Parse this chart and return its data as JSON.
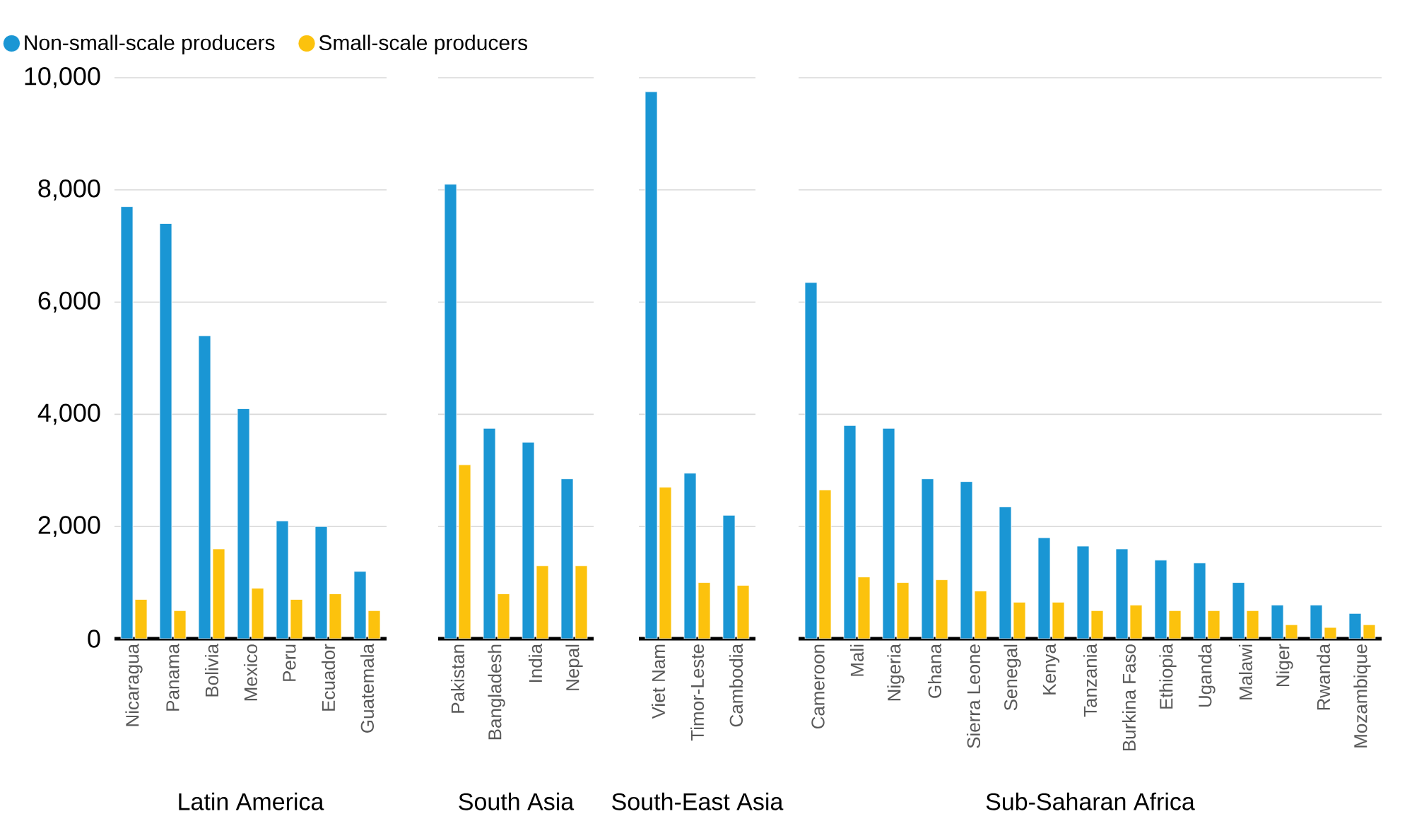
{
  "chart_data": [
    {
      "type": "bar",
      "xlabel": "Latin America",
      "categories": [
        "Nicaragua",
        "Panama",
        "Bolivia",
        "Mexico",
        "Peru",
        "Ecuador",
        "Guatemala"
      ],
      "series": [
        {
          "name": "Non-small-scale producers",
          "color": "#1a96d4",
          "values": [
            7700,
            7400,
            5400,
            4100,
            2100,
            2000,
            1200
          ]
        },
        {
          "name": "Small-scale producers",
          "color": "#fcc20d",
          "values": [
            700,
            500,
            1600,
            900,
            700,
            800,
            500
          ]
        }
      ],
      "ylim": [
        0,
        10000
      ],
      "yticks": [
        0,
        {
          "value": 2000,
          "label": "2,000"
        },
        {
          "value": 4000,
          "label": "4,000"
        },
        {
          "value": 6000,
          "label": "6,000"
        },
        {
          "value": 8000,
          "label": "8,000"
        },
        {
          "value": 10000,
          "label": "10,000"
        }
      ],
      "grid": "y",
      "legend": "top"
    },
    {
      "type": "bar",
      "xlabel": "South Asia",
      "categories": [
        "Pakistan",
        "Bangladesh",
        "India",
        "Nepal"
      ],
      "series": [
        {
          "color": "#1a96d4",
          "values": [
            8100,
            3750,
            3500,
            2850
          ]
        },
        {
          "color": "#fcc20d",
          "values": [
            3100,
            800,
            1300,
            1300
          ]
        }
      ],
      "ylim": [
        0,
        10000
      ],
      "yticks": [
        0,
        2000,
        4000,
        6000,
        8000,
        10000
      ],
      "grid": "y",
      "tick_labels": "x"
    },
    {
      "type": "bar",
      "xlabel": "South-East Asia",
      "categories": [
        "Viet Nam",
        "Timor-Leste",
        "Cambodia"
      ],
      "series": [
        {
          "color": "#1a96d4",
          "values": [
            9750,
            2950,
            2200
          ]
        },
        {
          "color": "#fcc20d",
          "values": [
            2700,
            1000,
            950
          ]
        }
      ],
      "ylim": [
        0,
        10000
      ],
      "yticks": [
        0,
        2000,
        4000,
        6000,
        8000,
        10000
      ],
      "grid": "y",
      "tick_labels": "x"
    },
    {
      "type": "bar",
      "xlabel": "Sub-Saharan Africa",
      "categories": [
        "Cameroon",
        "Mali",
        "Nigeria",
        "Ghana",
        "Sierra Leone",
        "Senegal",
        "Kenya",
        "Tanzania",
        "Burkina Faso",
        "Ethiopia",
        "Uganda",
        "Malawi",
        "Niger",
        "Rwanda",
        "Mozambique"
      ],
      "series": [
        {
          "color": "#1a96d4",
          "values": [
            6350,
            3800,
            3750,
            2850,
            2800,
            2350,
            1800,
            1650,
            1600,
            1400,
            1350,
            1000,
            600,
            600,
            450
          ]
        },
        {
          "color": "#fcc20d",
          "values": [
            2650,
            1100,
            1000,
            1050,
            850,
            650,
            650,
            500,
            600,
            500,
            500,
            500,
            250,
            200,
            250
          ]
        }
      ],
      "ylim": [
        0,
        10000
      ],
      "yticks": [
        0,
        2000,
        4000,
        6000,
        8000,
        10000
      ],
      "grid": "y",
      "tick_labels": "x"
    }
  ]
}
